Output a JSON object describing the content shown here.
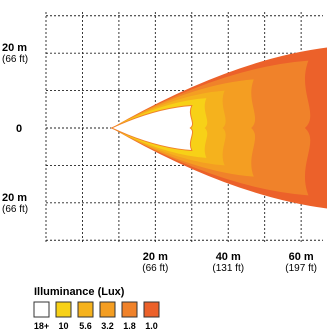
{
  "chart_data": {
    "type": "area",
    "x_ticks": [
      {
        "value": 20,
        "label": "20 m",
        "sub": "(66 ft)"
      },
      {
        "value": 40,
        "label": "40 m",
        "sub": "(131 ft)"
      },
      {
        "value": 60,
        "label": "60 m",
        "sub": "(197 ft)"
      }
    ],
    "y_ticks": [
      {
        "value": 20,
        "label": "20 m",
        "sub": "(66 ft)"
      },
      {
        "value": 0,
        "label": "0",
        "sub": ""
      },
      {
        "value": -20,
        "label": "20 m",
        "sub": "(66 ft)"
      }
    ],
    "xlim": [
      -10,
      66
    ],
    "ylim": [
      -31,
      31
    ],
    "grid": true,
    "legend": {
      "title": "Illuminance (Lux)",
      "placement": "bottom-left",
      "items": [
        {
          "label": "18+",
          "color": "#ffffff"
        },
        {
          "label": "10",
          "color": "#f7d117"
        },
        {
          "label": "5.6",
          "color": "#f5b21d"
        },
        {
          "label": "3.2",
          "color": "#f49e22"
        },
        {
          "label": "1.8",
          "color": "#f0822a"
        },
        {
          "label": "1.0",
          "color": "#ec612a"
        }
      ]
    },
    "beam_zones": [
      {
        "lux": "1.0",
        "color": "#ec612a",
        "x_max": 64,
        "half_width": 22
      },
      {
        "lux": "1.8",
        "color": "#f0822a",
        "x_max": 54,
        "half_width": 18
      },
      {
        "lux": "3.2",
        "color": "#f49e22",
        "x_max": 39,
        "half_width": 13
      },
      {
        "lux": "5.6",
        "color": "#f5b21d",
        "x_max": 31,
        "half_width": 10
      },
      {
        "lux": "10",
        "color": "#f7d117",
        "x_max": 26,
        "half_width": 8
      },
      {
        "lux": "18+",
        "color": "#ffffff",
        "x_max": 22,
        "half_width": 6
      }
    ]
  }
}
